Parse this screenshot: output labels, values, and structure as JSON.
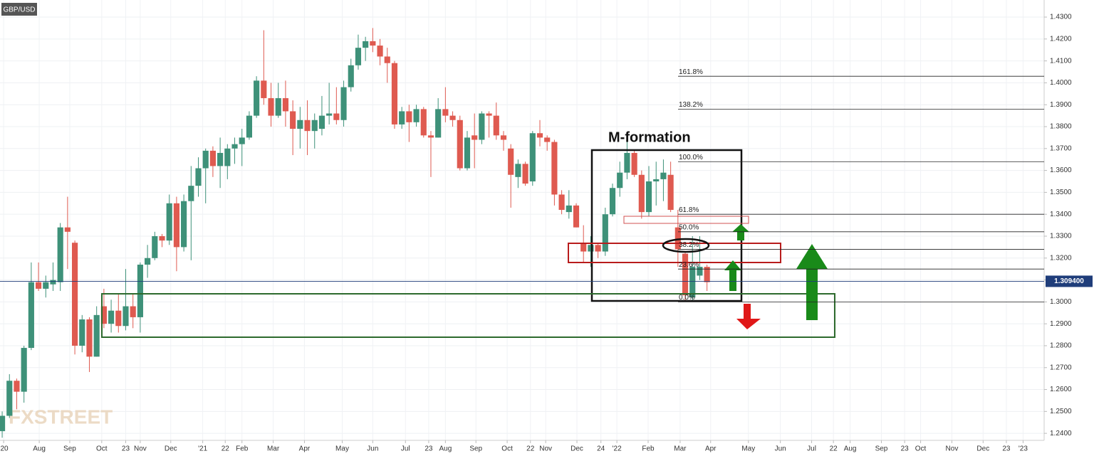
{
  "chart_data": {
    "type": "candlestick",
    "title": "GBP/USD",
    "annotation": "M-formation",
    "watermark": "FXSTREET",
    "up_color": "#3e9179",
    "down_color": "#df5a50",
    "grid": true,
    "x": [
      0,
      1,
      2,
      3,
      4,
      5,
      6,
      7,
      8,
      9,
      10,
      11,
      12,
      13,
      14,
      15,
      16,
      17,
      18,
      19,
      20,
      21,
      22,
      23,
      24,
      25,
      26,
      27,
      28,
      29,
      30,
      31,
      32,
      33,
      34,
      35,
      36,
      37,
      38,
      39,
      40,
      41,
      42,
      43,
      44,
      45,
      46,
      47,
      48,
      49,
      50,
      51,
      52,
      53,
      54,
      55,
      56,
      57,
      58,
      59,
      60,
      61,
      62,
      63,
      64,
      65,
      66,
      67,
      68,
      69,
      70,
      71,
      72,
      73,
      74,
      75,
      76,
      77,
      78,
      79,
      80,
      81,
      82,
      83,
      84,
      85,
      86,
      87,
      88,
      89,
      90,
      91,
      92,
      93,
      94,
      95,
      96,
      97
    ],
    "open": [
      1.241,
      1.248,
      1.264,
      1.259,
      1.279,
      1.309,
      1.306,
      1.308,
      1.309,
      1.334,
      1.327,
      1.28,
      1.292,
      1.275,
      1.298,
      1.29,
      1.296,
      1.289,
      1.298,
      1.293,
      1.317,
      1.32,
      1.33,
      1.328,
      1.345,
      1.325,
      1.346,
      1.353,
      1.361,
      1.369,
      1.362,
      1.362,
      1.37,
      1.372,
      1.375,
      1.385,
      1.401,
      1.393,
      1.385,
      1.393,
      1.387,
      1.379,
      1.383,
      1.378,
      1.379,
      1.385,
      1.386,
      1.383,
      1.398,
      1.408,
      1.416,
      1.419,
      1.417,
      1.412,
      1.409,
      1.381,
      1.387,
      1.382,
      1.388,
      1.376,
      1.375,
      1.388,
      1.385,
      1.383,
      1.361,
      1.376,
      1.374,
      1.386,
      1.385,
      1.376,
      1.37,
      1.357,
      1.363,
      1.355,
      1.377,
      1.375,
      1.373,
      1.349,
      1.341,
      1.344,
      1.327,
      1.323,
      1.326,
      1.323,
      1.34,
      1.352,
      1.359,
      1.368,
      1.358,
      1.341,
      1.355,
      1.356,
      1.358,
      1.334,
      1.322,
      1.302,
      1.312,
      1.316
    ],
    "high": [
      1.25,
      1.267,
      1.265,
      1.28,
      1.318,
      1.318,
      1.312,
      1.318,
      1.336,
      1.348,
      1.328,
      1.294,
      1.293,
      1.298,
      1.306,
      1.301,
      1.304,
      1.315,
      1.304,
      1.318,
      1.326,
      1.332,
      1.331,
      1.349,
      1.348,
      1.349,
      1.362,
      1.366,
      1.37,
      1.371,
      1.375,
      1.372,
      1.375,
      1.379,
      1.387,
      1.403,
      1.424,
      1.4,
      1.4,
      1.401,
      1.392,
      1.389,
      1.392,
      1.386,
      1.394,
      1.4,
      1.398,
      1.401,
      1.411,
      1.422,
      1.421,
      1.425,
      1.42,
      1.416,
      1.41,
      1.389,
      1.39,
      1.39,
      1.389,
      1.378,
      1.393,
      1.398,
      1.387,
      1.385,
      1.378,
      1.386,
      1.387,
      1.387,
      1.391,
      1.378,
      1.372,
      1.365,
      1.364,
      1.378,
      1.383,
      1.376,
      1.374,
      1.351,
      1.351,
      1.345,
      1.335,
      1.33,
      1.327,
      1.343,
      1.354,
      1.364,
      1.375,
      1.369,
      1.36,
      1.362,
      1.364,
      1.365,
      1.364,
      1.342,
      1.323,
      1.33,
      1.33,
      1.317
    ],
    "low": [
      1.238,
      1.247,
      1.251,
      1.254,
      1.278,
      1.305,
      1.302,
      1.305,
      1.305,
      1.315,
      1.276,
      1.277,
      1.268,
      1.275,
      1.288,
      1.286,
      1.286,
      1.287,
      1.288,
      1.286,
      1.311,
      1.319,
      1.325,
      1.326,
      1.314,
      1.323,
      1.319,
      1.348,
      1.345,
      1.357,
      1.352,
      1.356,
      1.363,
      1.362,
      1.374,
      1.384,
      1.39,
      1.38,
      1.384,
      1.38,
      1.367,
      1.37,
      1.367,
      1.37,
      1.376,
      1.381,
      1.381,
      1.38,
      1.396,
      1.406,
      1.41,
      1.414,
      1.408,
      1.4,
      1.379,
      1.379,
      1.373,
      1.38,
      1.375,
      1.357,
      1.375,
      1.382,
      1.38,
      1.36,
      1.36,
      1.361,
      1.372,
      1.375,
      1.374,
      1.369,
      1.343,
      1.352,
      1.353,
      1.353,
      1.371,
      1.369,
      1.344,
      1.34,
      1.338,
      1.334,
      1.318,
      1.316,
      1.32,
      1.321,
      1.339,
      1.348,
      1.356,
      1.357,
      1.338,
      1.339,
      1.344,
      1.346,
      1.341,
      1.316,
      1.3,
      1.3,
      1.31,
      1.305
    ],
    "close": [
      1.248,
      1.264,
      1.259,
      1.279,
      1.309,
      1.306,
      1.309,
      1.31,
      1.334,
      1.332,
      1.28,
      1.292,
      1.275,
      1.294,
      1.29,
      1.296,
      1.289,
      1.298,
      1.293,
      1.317,
      1.32,
      1.33,
      1.328,
      1.345,
      1.325,
      1.346,
      1.353,
      1.361,
      1.369,
      1.362,
      1.368,
      1.37,
      1.372,
      1.375,
      1.385,
      1.401,
      1.393,
      1.385,
      1.393,
      1.387,
      1.379,
      1.383,
      1.378,
      1.383,
      1.385,
      1.386,
      1.383,
      1.398,
      1.408,
      1.416,
      1.419,
      1.417,
      1.412,
      1.409,
      1.381,
      1.387,
      1.382,
      1.388,
      1.376,
      1.375,
      1.388,
      1.385,
      1.383,
      1.361,
      1.375,
      1.374,
      1.386,
      1.385,
      1.376,
      1.374,
      1.358,
      1.363,
      1.354,
      1.377,
      1.375,
      1.373,
      1.349,
      1.342,
      1.344,
      1.334,
      1.323,
      1.326,
      1.323,
      1.34,
      1.352,
      1.359,
      1.368,
      1.358,
      1.341,
      1.355,
      1.356,
      1.359,
      1.342,
      1.324,
      1.303,
      1.316,
      1.316,
      1.309
    ],
    "xlim": [
      -0.3,
      143.4
    ],
    "ylim": [
      1.2368,
      1.4378
    ],
    "xticks": [
      {
        "value": 0.2,
        "label": "'20"
      },
      {
        "value": 5.1,
        "label": "Aug"
      },
      {
        "value": 9.3,
        "label": "Sep"
      },
      {
        "value": 13.7,
        "label": "Oct"
      },
      {
        "value": 17,
        "label": "23"
      },
      {
        "value": 19,
        "label": "Nov"
      },
      {
        "value": 23.2,
        "label": "Dec"
      },
      {
        "value": 27.6,
        "label": "'21"
      },
      {
        "value": 30.7,
        "label": "22"
      },
      {
        "value": 33,
        "label": "Feb"
      },
      {
        "value": 37.3,
        "label": "Mar"
      },
      {
        "value": 41.6,
        "label": "Apr"
      },
      {
        "value": 46.8,
        "label": "May"
      },
      {
        "value": 51,
        "label": "Jun"
      },
      {
        "value": 55.5,
        "label": "Jul"
      },
      {
        "value": 58.7,
        "label": "23"
      },
      {
        "value": 61,
        "label": "Aug"
      },
      {
        "value": 65.2,
        "label": "Sep"
      },
      {
        "value": 69.5,
        "label": "Oct"
      },
      {
        "value": 72.7,
        "label": "22"
      },
      {
        "value": 74.8,
        "label": "Nov"
      },
      {
        "value": 79.1,
        "label": "Dec"
      },
      {
        "value": 82.4,
        "label": "24"
      },
      {
        "value": 84.6,
        "label": "'22"
      },
      {
        "value": 88.9,
        "label": "Feb"
      },
      {
        "value": 93.3,
        "label": "Mar"
      },
      {
        "value": 97.5,
        "label": "Apr"
      },
      {
        "value": 102.7,
        "label": "May"
      },
      {
        "value": 107.1,
        "label": "Jun"
      },
      {
        "value": 111.4,
        "label": "Jul"
      },
      {
        "value": 114.4,
        "label": "22"
      },
      {
        "value": 116.7,
        "label": "Aug"
      },
      {
        "value": 121,
        "label": "Sep"
      },
      {
        "value": 124.2,
        "label": "23"
      },
      {
        "value": 126.4,
        "label": "Oct"
      },
      {
        "value": 130.7,
        "label": "Nov"
      },
      {
        "value": 135,
        "label": "Dec"
      },
      {
        "value": 138.2,
        "label": "23"
      },
      {
        "value": 140.5,
        "label": "'23"
      }
    ],
    "yticks": [
      {
        "value": 1.24,
        "label": "1.2400"
      },
      {
        "value": 1.25,
        "label": "1.2500"
      },
      {
        "value": 1.26,
        "label": "1.2600"
      },
      {
        "value": 1.27,
        "label": "1.2700"
      },
      {
        "value": 1.28,
        "label": "1.2800"
      },
      {
        "value": 1.29,
        "label": "1.2900"
      },
      {
        "value": 1.3,
        "label": "1.3000"
      },
      {
        "value": 1.31,
        "label": "1.3100"
      },
      {
        "value": 1.32,
        "label": "1.3200"
      },
      {
        "value": 1.33,
        "label": "1.3300"
      },
      {
        "value": 1.34,
        "label": "1.3400"
      },
      {
        "value": 1.35,
        "label": "1.3500"
      },
      {
        "value": 1.36,
        "label": "1.3600"
      },
      {
        "value": 1.37,
        "label": "1.3700"
      },
      {
        "value": 1.38,
        "label": "1.3800"
      },
      {
        "value": 1.39,
        "label": "1.3900"
      },
      {
        "value": 1.4,
        "label": "1.4000"
      },
      {
        "value": 1.41,
        "label": "1.4100"
      },
      {
        "value": 1.42,
        "label": "1.4200"
      },
      {
        "value": 1.43,
        "label": "1.4300"
      }
    ],
    "fib_levels": [
      {
        "value": 1.403,
        "label": "161.8%"
      },
      {
        "value": 1.388,
        "label": "138.2%"
      },
      {
        "value": 1.364,
        "label": "100.0%"
      },
      {
        "value": 1.34,
        "label": "61.8%"
      },
      {
        "value": 1.332,
        "label": "50.0%"
      },
      {
        "value": 1.324,
        "label": "38.2%"
      },
      {
        "value": 1.315,
        "label": "23.6%"
      },
      {
        "value": 1.3,
        "label": "0.0%"
      }
    ],
    "current_price": {
      "value": 1.3094,
      "label": "1.309400"
    }
  }
}
